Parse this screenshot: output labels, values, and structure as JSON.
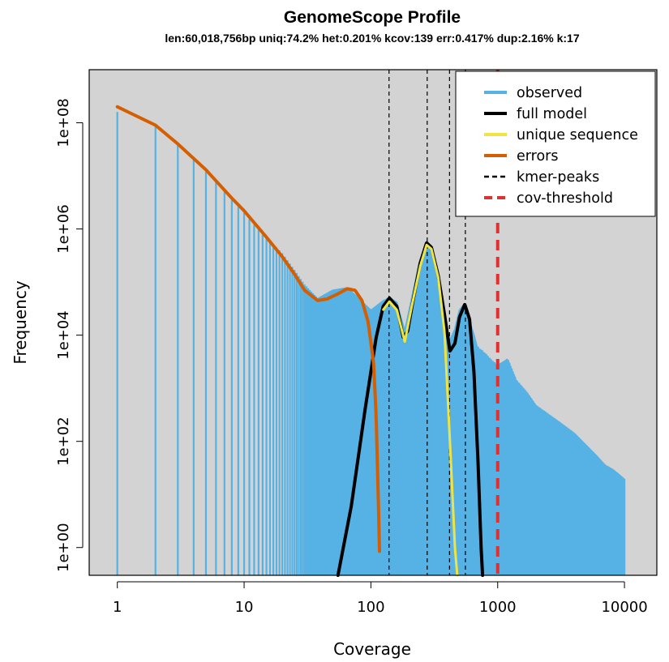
{
  "chart_data": {
    "type": "line",
    "title": "GenomeScope Profile",
    "subtitle": "len:60,018,756bp uniq:74.2%  het:0.201% kcov:139 err:0.417%  dup:2.16%  k:17",
    "xlabel": "Coverage",
    "ylabel": "Frequency",
    "x_scale": "log",
    "y_scale": "log",
    "xlim": [
      0.6,
      18000
    ],
    "ylim": [
      0.3,
      1000000000
    ],
    "x_ticks": [
      1,
      10,
      100,
      1000,
      10000
    ],
    "x_tick_labels": [
      "1",
      "10",
      "100",
      "1000",
      "10000"
    ],
    "y_ticks": [
      1,
      100,
      10000,
      1000000,
      100000000
    ],
    "y_tick_labels": [
      "1e+00",
      "1e+02",
      "1e+04",
      "1e+06",
      "1e+08"
    ],
    "background": "#d3d3d3",
    "legend_position": "top-right",
    "series": [
      {
        "name": "observed",
        "style": "histogram",
        "color": "#56b1e4",
        "points": [
          [
            1,
            160000000
          ],
          [
            2,
            90000000
          ],
          [
            3,
            40000000
          ],
          [
            4,
            20000000
          ],
          [
            5,
            12000000
          ],
          [
            6,
            7500000
          ],
          [
            7,
            5000000
          ],
          [
            8,
            3500000
          ],
          [
            10,
            2000000
          ],
          [
            12,
            1200000
          ],
          [
            15,
            700000
          ],
          [
            20,
            350000
          ],
          [
            25,
            170000
          ],
          [
            30,
            90000
          ],
          [
            38,
            50000
          ],
          [
            50,
            72000
          ],
          [
            65,
            80000
          ],
          [
            80,
            50000
          ],
          [
            100,
            30000
          ],
          [
            125,
            45000
          ],
          [
            140,
            52000
          ],
          [
            160,
            42000
          ],
          [
            185,
            12000
          ],
          [
            210,
            50000
          ],
          [
            240,
            220000
          ],
          [
            275,
            520000
          ],
          [
            300,
            420000
          ],
          [
            340,
            120000
          ],
          [
            380,
            20000
          ],
          [
            420,
            8000
          ],
          [
            460,
            13000
          ],
          [
            500,
            30000
          ],
          [
            550,
            40000
          ],
          [
            600,
            18000
          ],
          [
            650,
            10000
          ],
          [
            700,
            5000
          ],
          [
            800,
            3800
          ],
          [
            900,
            2800
          ],
          [
            1000,
            2300
          ],
          [
            1200,
            3000
          ],
          [
            1400,
            1200
          ],
          [
            1700,
            700
          ],
          [
            2000,
            400
          ],
          [
            3000,
            200
          ],
          [
            4000,
            120
          ],
          [
            5000,
            70
          ],
          [
            6000,
            45
          ],
          [
            7000,
            30
          ],
          [
            8000,
            25
          ],
          [
            9000,
            20
          ],
          [
            10000,
            16
          ]
        ]
      },
      {
        "name": "full model",
        "color": "#000000",
        "points": [
          [
            55,
            0.3
          ],
          [
            70,
            6
          ],
          [
            90,
            400
          ],
          [
            110,
            9000
          ],
          [
            125,
            35000
          ],
          [
            140,
            50000
          ],
          [
            160,
            35000
          ],
          [
            180,
            9000
          ],
          [
            195,
            12000
          ],
          [
            215,
            45000
          ],
          [
            245,
            230000
          ],
          [
            275,
            550000
          ],
          [
            300,
            450000
          ],
          [
            340,
            130000
          ],
          [
            380,
            25000
          ],
          [
            420,
            5000
          ],
          [
            460,
            7000
          ],
          [
            500,
            22000
          ],
          [
            550,
            38000
          ],
          [
            600,
            20000
          ],
          [
            650,
            2000
          ],
          [
            700,
            40
          ],
          [
            740,
            1
          ],
          [
            760,
            0.3
          ]
        ]
      },
      {
        "name": "unique sequence",
        "color": "#f0e442",
        "points": [
          [
            125,
            30000
          ],
          [
            140,
            43000
          ],
          [
            160,
            30000
          ],
          [
            185,
            7500
          ],
          [
            210,
            35000
          ],
          [
            245,
            200000
          ],
          [
            275,
            500000
          ],
          [
            300,
            420000
          ],
          [
            340,
            120000
          ],
          [
            380,
            12000
          ],
          [
            420,
            100
          ],
          [
            460,
            1
          ],
          [
            480,
            0.3
          ]
        ]
      },
      {
        "name": "errors",
        "color": "#d55e00",
        "points": [
          [
            1,
            200000000
          ],
          [
            2,
            90000000
          ],
          [
            3,
            40000000
          ],
          [
            5,
            13000000
          ],
          [
            8,
            3800000
          ],
          [
            10,
            2200000
          ],
          [
            15,
            700000
          ],
          [
            20,
            300000
          ],
          [
            25,
            140000
          ],
          [
            30,
            70000
          ],
          [
            38,
            45000
          ],
          [
            45,
            48000
          ],
          [
            55,
            60000
          ],
          [
            65,
            75000
          ],
          [
            75,
            70000
          ],
          [
            85,
            45000
          ],
          [
            95,
            18000
          ],
          [
            105,
            3000
          ],
          [
            110,
            300
          ],
          [
            115,
            5
          ],
          [
            118,
            0.3
          ]
        ]
      },
      {
        "name": "kmer-peaks",
        "color": "#000000",
        "style": "dashed vertical lines",
        "x_values": [
          139,
          278,
          417,
          556
        ]
      },
      {
        "name": "cov-threshold",
        "color": "#e03030",
        "style": "dashed vertical line",
        "x_values": [
          1000
        ]
      }
    ],
    "legend": [
      {
        "label": "observed",
        "color": "#56b1e4",
        "dash": false
      },
      {
        "label": "full model",
        "color": "#000000",
        "dash": false
      },
      {
        "label": "unique sequence",
        "color": "#f0e442",
        "dash": false
      },
      {
        "label": "errors",
        "color": "#d55e00",
        "dash": false
      },
      {
        "label": "kmer-peaks",
        "color": "#000000",
        "dash": true
      },
      {
        "label": "cov-threshold",
        "color": "#e03030",
        "dash": true
      }
    ]
  }
}
